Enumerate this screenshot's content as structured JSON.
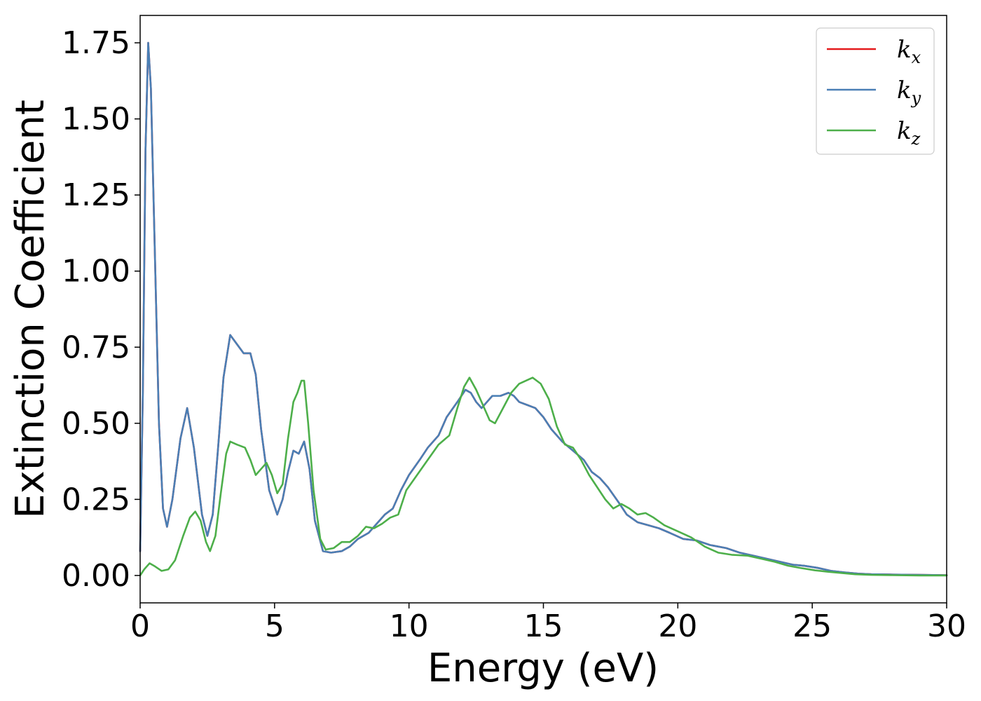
{
  "chart_data": {
    "type": "line",
    "title": "",
    "xlabel": "Energy (eV)",
    "ylabel": "Extinction Coefficient",
    "xlim": [
      0,
      30
    ],
    "ylim": [
      -0.09,
      1.84
    ],
    "xticks": [
      0,
      5,
      10,
      15,
      20,
      25,
      30
    ],
    "yticks": [
      0.0,
      0.25,
      0.5,
      0.75,
      1.0,
      1.25,
      1.5,
      1.75
    ],
    "xtick_labels": [
      "0",
      "5",
      "10",
      "15",
      "20",
      "25",
      "30"
    ],
    "ytick_labels": [
      "0.00",
      "0.25",
      "0.50",
      "0.75",
      "1.00",
      "1.25",
      "1.50",
      "1.75"
    ],
    "grid": false,
    "legend_position": "top-right",
    "series": [
      {
        "name": "k_x",
        "label_main": "k",
        "label_sub": "x",
        "color": "#e41a1c",
        "points": [
          [
            0,
            0.08
          ],
          [
            0.1,
            0.6
          ],
          [
            0.2,
            1.4
          ],
          [
            0.3,
            1.75
          ],
          [
            0.4,
            1.6
          ],
          [
            0.55,
            1.05
          ],
          [
            0.7,
            0.5
          ],
          [
            0.85,
            0.22
          ],
          [
            1.0,
            0.16
          ],
          [
            1.2,
            0.25
          ],
          [
            1.5,
            0.45
          ],
          [
            1.75,
            0.55
          ],
          [
            2.0,
            0.42
          ],
          [
            2.3,
            0.2
          ],
          [
            2.5,
            0.13
          ],
          [
            2.7,
            0.2
          ],
          [
            2.9,
            0.42
          ],
          [
            3.1,
            0.65
          ],
          [
            3.35,
            0.79
          ],
          [
            3.6,
            0.76
          ],
          [
            3.85,
            0.73
          ],
          [
            4.1,
            0.73
          ],
          [
            4.3,
            0.66
          ],
          [
            4.5,
            0.48
          ],
          [
            4.8,
            0.28
          ],
          [
            5.1,
            0.2
          ],
          [
            5.3,
            0.25
          ],
          [
            5.5,
            0.34
          ],
          [
            5.7,
            0.41
          ],
          [
            5.9,
            0.4
          ],
          [
            6.1,
            0.44
          ],
          [
            6.3,
            0.35
          ],
          [
            6.5,
            0.18
          ],
          [
            6.8,
            0.08
          ],
          [
            7.1,
            0.075
          ],
          [
            7.5,
            0.08
          ],
          [
            7.8,
            0.095
          ],
          [
            8.1,
            0.12
          ],
          [
            8.5,
            0.14
          ],
          [
            8.8,
            0.17
          ],
          [
            9.1,
            0.2
          ],
          [
            9.4,
            0.22
          ],
          [
            9.7,
            0.28
          ],
          [
            10.0,
            0.33
          ],
          [
            10.4,
            0.38
          ],
          [
            10.7,
            0.42
          ],
          [
            11.1,
            0.46
          ],
          [
            11.4,
            0.52
          ],
          [
            11.8,
            0.57
          ],
          [
            12.1,
            0.61
          ],
          [
            12.3,
            0.6
          ],
          [
            12.5,
            0.57
          ],
          [
            12.7,
            0.55
          ],
          [
            12.9,
            0.57
          ],
          [
            13.1,
            0.59
          ],
          [
            13.4,
            0.59
          ],
          [
            13.7,
            0.6
          ],
          [
            13.9,
            0.59
          ],
          [
            14.1,
            0.57
          ],
          [
            14.4,
            0.56
          ],
          [
            14.7,
            0.55
          ],
          [
            15.0,
            0.52
          ],
          [
            15.3,
            0.48
          ],
          [
            15.7,
            0.44
          ],
          [
            16.1,
            0.41
          ],
          [
            16.5,
            0.38
          ],
          [
            16.8,
            0.34
          ],
          [
            17.1,
            0.32
          ],
          [
            17.4,
            0.29
          ],
          [
            17.8,
            0.24
          ],
          [
            18.1,
            0.2
          ],
          [
            18.5,
            0.175
          ],
          [
            18.9,
            0.165
          ],
          [
            19.3,
            0.155
          ],
          [
            19.7,
            0.14
          ],
          [
            20.2,
            0.12
          ],
          [
            20.7,
            0.115
          ],
          [
            21.2,
            0.1
          ],
          [
            21.8,
            0.09
          ],
          [
            22.3,
            0.075
          ],
          [
            22.8,
            0.065
          ],
          [
            23.3,
            0.055
          ],
          [
            23.8,
            0.045
          ],
          [
            24.3,
            0.035
          ],
          [
            24.7,
            0.032
          ],
          [
            25.2,
            0.025
          ],
          [
            25.7,
            0.015
          ],
          [
            26.2,
            0.01
          ],
          [
            26.7,
            0.006
          ],
          [
            27.2,
            0.004
          ],
          [
            28,
            0.003
          ],
          [
            29,
            0.002
          ],
          [
            30,
            0.001
          ]
        ]
      },
      {
        "name": "k_y",
        "label_main": "k",
        "label_sub": "y",
        "color": "#4a7fb5",
        "points": [
          [
            0,
            0.08
          ],
          [
            0.1,
            0.6
          ],
          [
            0.2,
            1.4
          ],
          [
            0.3,
            1.75
          ],
          [
            0.4,
            1.6
          ],
          [
            0.55,
            1.05
          ],
          [
            0.7,
            0.5
          ],
          [
            0.85,
            0.22
          ],
          [
            1.0,
            0.16
          ],
          [
            1.2,
            0.25
          ],
          [
            1.5,
            0.45
          ],
          [
            1.75,
            0.55
          ],
          [
            2.0,
            0.42
          ],
          [
            2.3,
            0.2
          ],
          [
            2.5,
            0.13
          ],
          [
            2.7,
            0.2
          ],
          [
            2.9,
            0.42
          ],
          [
            3.1,
            0.65
          ],
          [
            3.35,
            0.79
          ],
          [
            3.6,
            0.76
          ],
          [
            3.85,
            0.73
          ],
          [
            4.1,
            0.73
          ],
          [
            4.3,
            0.66
          ],
          [
            4.5,
            0.48
          ],
          [
            4.8,
            0.28
          ],
          [
            5.1,
            0.2
          ],
          [
            5.3,
            0.25
          ],
          [
            5.5,
            0.34
          ],
          [
            5.7,
            0.41
          ],
          [
            5.9,
            0.4
          ],
          [
            6.1,
            0.44
          ],
          [
            6.3,
            0.35
          ],
          [
            6.5,
            0.18
          ],
          [
            6.8,
            0.08
          ],
          [
            7.1,
            0.075
          ],
          [
            7.5,
            0.08
          ],
          [
            7.8,
            0.095
          ],
          [
            8.1,
            0.12
          ],
          [
            8.5,
            0.14
          ],
          [
            8.8,
            0.17
          ],
          [
            9.1,
            0.2
          ],
          [
            9.4,
            0.22
          ],
          [
            9.7,
            0.28
          ],
          [
            10.0,
            0.33
          ],
          [
            10.4,
            0.38
          ],
          [
            10.7,
            0.42
          ],
          [
            11.1,
            0.46
          ],
          [
            11.4,
            0.52
          ],
          [
            11.8,
            0.57
          ],
          [
            12.1,
            0.61
          ],
          [
            12.3,
            0.6
          ],
          [
            12.5,
            0.57
          ],
          [
            12.7,
            0.55
          ],
          [
            12.9,
            0.57
          ],
          [
            13.1,
            0.59
          ],
          [
            13.4,
            0.59
          ],
          [
            13.7,
            0.6
          ],
          [
            13.9,
            0.59
          ],
          [
            14.1,
            0.57
          ],
          [
            14.4,
            0.56
          ],
          [
            14.7,
            0.55
          ],
          [
            15.0,
            0.52
          ],
          [
            15.3,
            0.48
          ],
          [
            15.7,
            0.44
          ],
          [
            16.1,
            0.41
          ],
          [
            16.5,
            0.38
          ],
          [
            16.8,
            0.34
          ],
          [
            17.1,
            0.32
          ],
          [
            17.4,
            0.29
          ],
          [
            17.8,
            0.24
          ],
          [
            18.1,
            0.2
          ],
          [
            18.5,
            0.175
          ],
          [
            18.9,
            0.165
          ],
          [
            19.3,
            0.155
          ],
          [
            19.7,
            0.14
          ],
          [
            20.2,
            0.12
          ],
          [
            20.7,
            0.115
          ],
          [
            21.2,
            0.1
          ],
          [
            21.8,
            0.09
          ],
          [
            22.3,
            0.075
          ],
          [
            22.8,
            0.065
          ],
          [
            23.3,
            0.055
          ],
          [
            23.8,
            0.045
          ],
          [
            24.3,
            0.035
          ],
          [
            24.7,
            0.032
          ],
          [
            25.2,
            0.025
          ],
          [
            25.7,
            0.015
          ],
          [
            26.2,
            0.01
          ],
          [
            26.7,
            0.006
          ],
          [
            27.2,
            0.004
          ],
          [
            28,
            0.003
          ],
          [
            29,
            0.002
          ],
          [
            30,
            0.001
          ]
        ]
      },
      {
        "name": "k_z",
        "label_main": "k",
        "label_sub": "z",
        "color": "#4daf4a",
        "points": [
          [
            0,
            0.0
          ],
          [
            0.15,
            0.02
          ],
          [
            0.35,
            0.04
          ],
          [
            0.55,
            0.03
          ],
          [
            0.8,
            0.015
          ],
          [
            1.05,
            0.02
          ],
          [
            1.3,
            0.05
          ],
          [
            1.6,
            0.13
          ],
          [
            1.85,
            0.19
          ],
          [
            2.05,
            0.21
          ],
          [
            2.25,
            0.18
          ],
          [
            2.45,
            0.11
          ],
          [
            2.6,
            0.08
          ],
          [
            2.8,
            0.13
          ],
          [
            3.0,
            0.27
          ],
          [
            3.2,
            0.4
          ],
          [
            3.35,
            0.44
          ],
          [
            3.6,
            0.43
          ],
          [
            3.9,
            0.42
          ],
          [
            4.1,
            0.38
          ],
          [
            4.3,
            0.33
          ],
          [
            4.5,
            0.35
          ],
          [
            4.7,
            0.37
          ],
          [
            4.9,
            0.33
          ],
          [
            5.1,
            0.27
          ],
          [
            5.3,
            0.3
          ],
          [
            5.5,
            0.45
          ],
          [
            5.7,
            0.57
          ],
          [
            5.85,
            0.6
          ],
          [
            6.0,
            0.64
          ],
          [
            6.1,
            0.64
          ],
          [
            6.25,
            0.5
          ],
          [
            6.45,
            0.28
          ],
          [
            6.7,
            0.12
          ],
          [
            6.9,
            0.085
          ],
          [
            7.2,
            0.09
          ],
          [
            7.5,
            0.11
          ],
          [
            7.8,
            0.11
          ],
          [
            8.1,
            0.13
          ],
          [
            8.4,
            0.16
          ],
          [
            8.7,
            0.155
          ],
          [
            9.0,
            0.17
          ],
          [
            9.3,
            0.19
          ],
          [
            9.6,
            0.2
          ],
          [
            9.9,
            0.28
          ],
          [
            10.3,
            0.33
          ],
          [
            10.7,
            0.38
          ],
          [
            11.1,
            0.43
          ],
          [
            11.5,
            0.46
          ],
          [
            11.8,
            0.55
          ],
          [
            12.05,
            0.62
          ],
          [
            12.25,
            0.65
          ],
          [
            12.5,
            0.61
          ],
          [
            12.8,
            0.55
          ],
          [
            13.0,
            0.51
          ],
          [
            13.2,
            0.5
          ],
          [
            13.5,
            0.55
          ],
          [
            13.8,
            0.6
          ],
          [
            14.1,
            0.63
          ],
          [
            14.35,
            0.64
          ],
          [
            14.6,
            0.65
          ],
          [
            14.9,
            0.63
          ],
          [
            15.2,
            0.58
          ],
          [
            15.5,
            0.49
          ],
          [
            15.8,
            0.43
          ],
          [
            16.1,
            0.42
          ],
          [
            16.4,
            0.38
          ],
          [
            16.7,
            0.33
          ],
          [
            17.0,
            0.29
          ],
          [
            17.3,
            0.25
          ],
          [
            17.6,
            0.22
          ],
          [
            17.9,
            0.235
          ],
          [
            18.2,
            0.22
          ],
          [
            18.5,
            0.2
          ],
          [
            18.8,
            0.205
          ],
          [
            19.1,
            0.19
          ],
          [
            19.5,
            0.165
          ],
          [
            20.0,
            0.145
          ],
          [
            20.5,
            0.125
          ],
          [
            21.0,
            0.095
          ],
          [
            21.5,
            0.075
          ],
          [
            22.0,
            0.068
          ],
          [
            22.6,
            0.065
          ],
          [
            23.1,
            0.055
          ],
          [
            23.6,
            0.045
          ],
          [
            24.1,
            0.032
          ],
          [
            24.6,
            0.024
          ],
          [
            25.1,
            0.017
          ],
          [
            25.6,
            0.012
          ],
          [
            26.1,
            0.008
          ],
          [
            26.6,
            0.004
          ],
          [
            27.2,
            0.002
          ],
          [
            28,
            0.001
          ],
          [
            29,
            0.0
          ],
          [
            30,
            0.0
          ]
        ]
      }
    ]
  }
}
